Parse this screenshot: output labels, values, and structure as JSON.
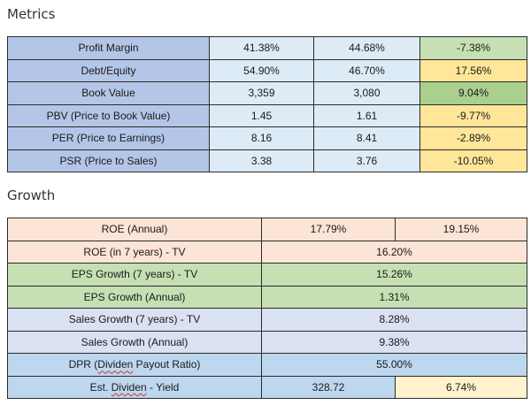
{
  "sections": {
    "metrics_title": "Metrics",
    "growth_title": "Growth"
  },
  "colors": {
    "metric_label_bg": "#b4c6e7",
    "metric_value_bg": "#ddebf7",
    "change_green_light": "#c6e0b4",
    "change_green": "#a9d08e",
    "change_yellow": "#ffe699",
    "growth_peach": "#fce4d6",
    "growth_green": "#c6e0b4",
    "growth_lavender": "#d9e1f2",
    "growth_blue": "#bdd7ee",
    "growth_cream": "#fff2cc"
  },
  "metrics": {
    "rows": [
      {
        "label": "Profit Margin",
        "v1": "41.38%",
        "v2": "44.68%",
        "change": "-7.38%",
        "change_color": "#c6e0b4"
      },
      {
        "label": "Debt/Equity",
        "v1": "54.90%",
        "v2": "46.70%",
        "change": "17.56%",
        "change_color": "#ffe699"
      },
      {
        "label": "Book Value",
        "v1": "3,359",
        "v2": "3,080",
        "change": "9.04%",
        "change_color": "#a9d08e"
      },
      {
        "label": "PBV (Price to Book Value)",
        "v1": "1.45",
        "v2": "1.61",
        "change": "-9.77%",
        "change_color": "#ffe699"
      },
      {
        "label": "PER (Price to Earnings)",
        "v1": "8.16",
        "v2": "8.41",
        "change": "-2.89%",
        "change_color": "#ffe699"
      },
      {
        "label": "PSR (Price to Sales)",
        "v1": "3.38",
        "v2": "3.76",
        "change": "-10.05%",
        "change_color": "#ffe699"
      }
    ]
  },
  "growth": {
    "roe_annual": {
      "label": "ROE (Annual)",
      "v1": "17.79%",
      "v2": "19.15%"
    },
    "roe_7y": {
      "label": "ROE (in 7 years) - TV",
      "value": "16.20%"
    },
    "eps_growth_7y": {
      "label": "EPS Growth (7 years) - TV",
      "value": "15.26%"
    },
    "eps_growth_annual": {
      "label": "EPS Growth (Annual)",
      "value": "1.31%"
    },
    "sales_growth_7y": {
      "label": "Sales Growth (7 years) - TV",
      "value": "8.28%"
    },
    "sales_growth_annual": {
      "label": "Sales Growth (Annual)",
      "value": "9.38%"
    },
    "dpr": {
      "label_prefix": "DPR (",
      "label_word": "Dividen",
      "label_suffix": " Payout Ratio)",
      "value": "55.00%"
    },
    "est_dividen": {
      "label_prefix": "Est. ",
      "label_word": "Dividen",
      "label_suffix": " - Yield",
      "v1": "328.72",
      "v2": "6.74%"
    }
  }
}
